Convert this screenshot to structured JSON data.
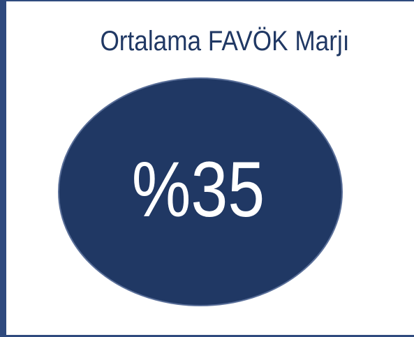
{
  "title": "Ortalama FAVÖK Marjı",
  "kpi": {
    "value": "%35"
  }
}
